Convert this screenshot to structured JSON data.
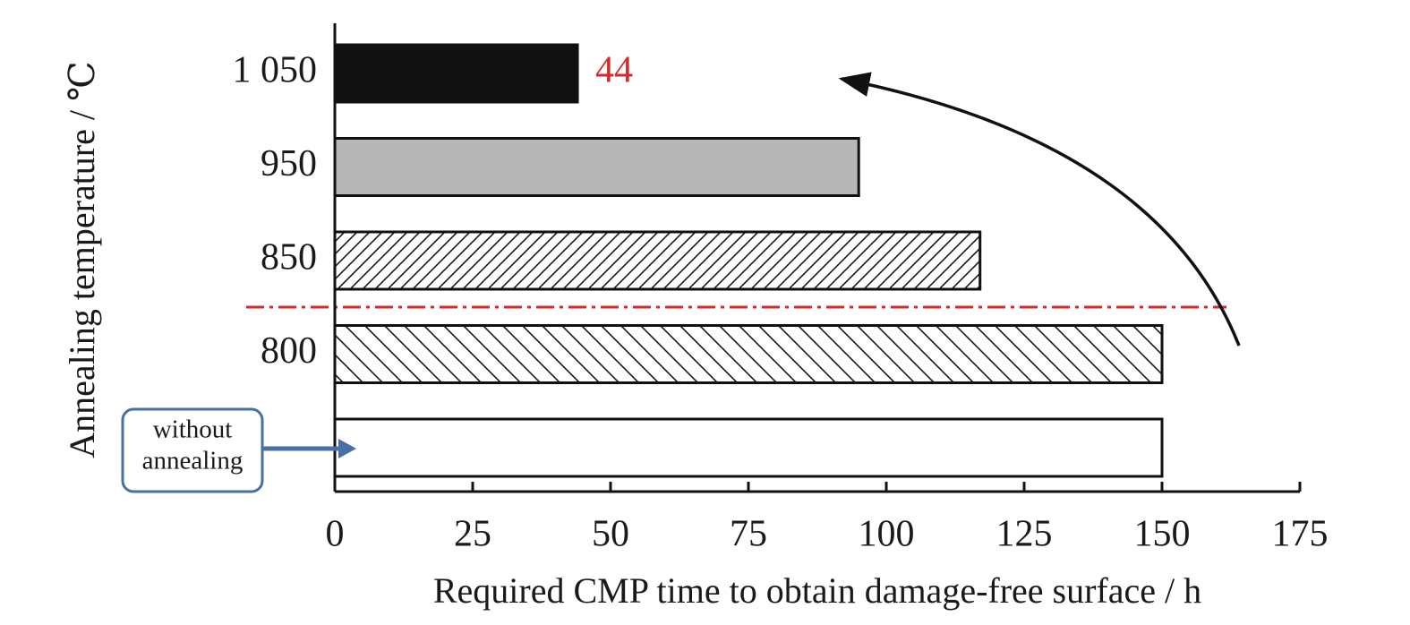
{
  "chart_data": {
    "type": "bar",
    "orientation": "horizontal",
    "categories": [
      "1 050",
      "950",
      "850",
      "800",
      "without annealing"
    ],
    "values": [
      44,
      95,
      117,
      150,
      150
    ],
    "fills": [
      "#111111",
      "#b7b7b7",
      "hatch-forward",
      "hatch-back",
      "#ffffff"
    ],
    "data_labels": [
      {
        "category": "1 050",
        "text": "44",
        "color": "#d42a2a"
      }
    ],
    "xlabel": "Required CMP time to obtain damage-free surface / h",
    "ylabel": "Annealing temperature / ℃",
    "xlim": [
      0,
      175
    ],
    "x_ticks": [
      "0",
      "25",
      "50",
      "75",
      "100",
      "125",
      "150",
      "175"
    ],
    "grid": false,
    "reference_line": {
      "between": [
        "850",
        "800"
      ],
      "style": "dash-dot",
      "color": "#d42a2a"
    },
    "trend_arrow": {
      "direction": "from 800 toward 1 050"
    },
    "callout": {
      "lines": [
        "without",
        "annealing"
      ],
      "points_to": "without annealing",
      "color": "#4a6fa5"
    }
  }
}
